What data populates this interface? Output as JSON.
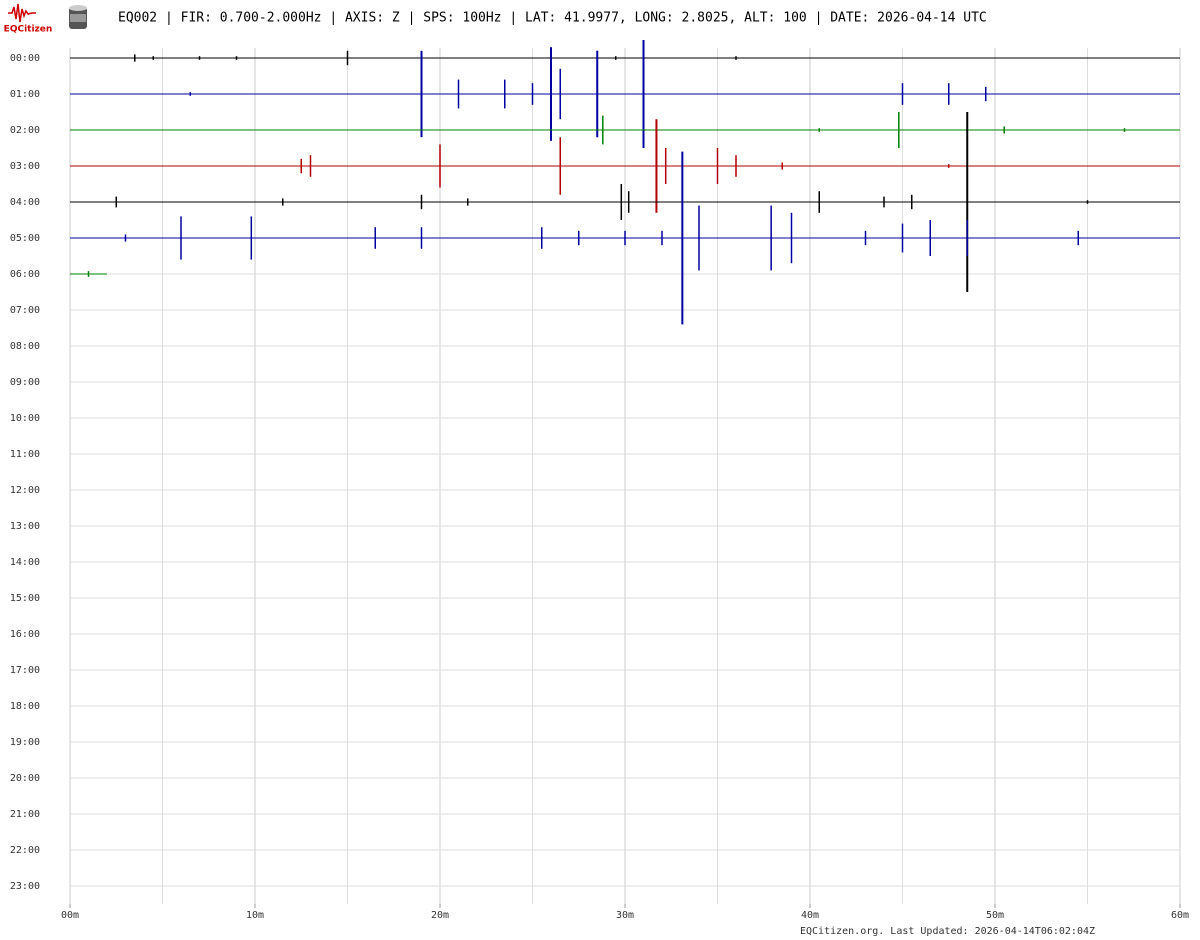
{
  "chart_data": {
    "type": "helicorder",
    "logo_text": "EQCitizen",
    "title": "EQ002 | FIR: 0.700-2.000Hz | AXIS: Z | SPS: 100Hz | LAT: 41.9977, LONG: 2.8025, ALT: 100 | DATE: 2026-04-14 UTC",
    "footer": "EQCitizen.org. Last Updated: 2026-04-14T06:02:04Z",
    "categories": [
      "00:00",
      "01:00",
      "02:00",
      "03:00",
      "04:00",
      "05:00",
      "06:00",
      "07:00",
      "08:00",
      "09:00",
      "10:00",
      "11:00",
      "12:00",
      "13:00",
      "14:00",
      "15:00",
      "16:00",
      "17:00",
      "18:00",
      "19:00",
      "20:00",
      "21:00",
      "22:00",
      "23:00"
    ],
    "xlim": [
      0,
      60
    ],
    "xticks": [
      {
        "value": 0,
        "label": "00m"
      },
      {
        "value": 10,
        "label": "10m"
      },
      {
        "value": 20,
        "label": "20m"
      },
      {
        "value": 30,
        "label": "30m"
      },
      {
        "value": 40,
        "label": "40m"
      },
      {
        "value": 50,
        "label": "50m"
      },
      {
        "value": 60,
        "label": "60m"
      }
    ],
    "grid": true,
    "traces": [
      {
        "color": "#000000",
        "x_end": 60,
        "x": [
          3.5,
          4.5,
          7,
          9,
          15,
          29.5,
          36
        ],
        "values": [
          0.1,
          0.05,
          0.05,
          0.05,
          0.2,
          0.05,
          0.05
        ]
      },
      {
        "color": "#0000a0",
        "x_end": 60,
        "x": [
          6.5,
          19,
          21,
          23.5,
          25,
          26,
          26.5,
          28.5,
          31,
          45,
          47.5,
          49.5
        ],
        "values": [
          0.05,
          1.2,
          0.4,
          0.4,
          0.3,
          1.3,
          0.7,
          1.2,
          1.5,
          0.3,
          0.3,
          0.2
        ]
      },
      {
        "color": "#008000",
        "x_end": 60,
        "x": [
          28.8,
          40.5,
          44.8,
          50.5,
          57
        ],
        "values": [
          0.4,
          0.05,
          0.5,
          0.1,
          0.05
        ]
      },
      {
        "color": "#b00000",
        "x_end": 60,
        "x": [
          12.5,
          13,
          20,
          26.5,
          31.7,
          32.2,
          35,
          36,
          38.5,
          47.5
        ],
        "values": [
          0.2,
          0.3,
          0.6,
          0.8,
          1.3,
          0.5,
          0.5,
          0.3,
          0.1,
          0.05
        ]
      },
      {
        "color": "#000000",
        "x_end": 60,
        "x": [
          2.5,
          11.5,
          19,
          21.5,
          29.8,
          30.2,
          40.5,
          44,
          45.5,
          48.5,
          55
        ],
        "values": [
          0.15,
          0.1,
          0.2,
          0.1,
          0.5,
          0.3,
          0.3,
          0.15,
          0.2,
          2.5,
          0.05
        ]
      },
      {
        "color": "#0000a0",
        "x_end": 60,
        "x": [
          3,
          6,
          9.8,
          16.5,
          19,
          25.5,
          27.5,
          30,
          32,
          33.1,
          34,
          37.9,
          39,
          43,
          45,
          46.5,
          48.5,
          54.5
        ],
        "values": [
          0.1,
          0.6,
          0.6,
          0.3,
          0.3,
          0.3,
          0.2,
          0.2,
          0.2,
          2.4,
          0.9,
          0.9,
          0.7,
          0.2,
          0.4,
          0.5,
          0.5,
          0.2
        ]
      },
      {
        "color": "#008000",
        "x_end": 2,
        "x": [
          1
        ],
        "values": [
          0.08
        ]
      }
    ]
  }
}
